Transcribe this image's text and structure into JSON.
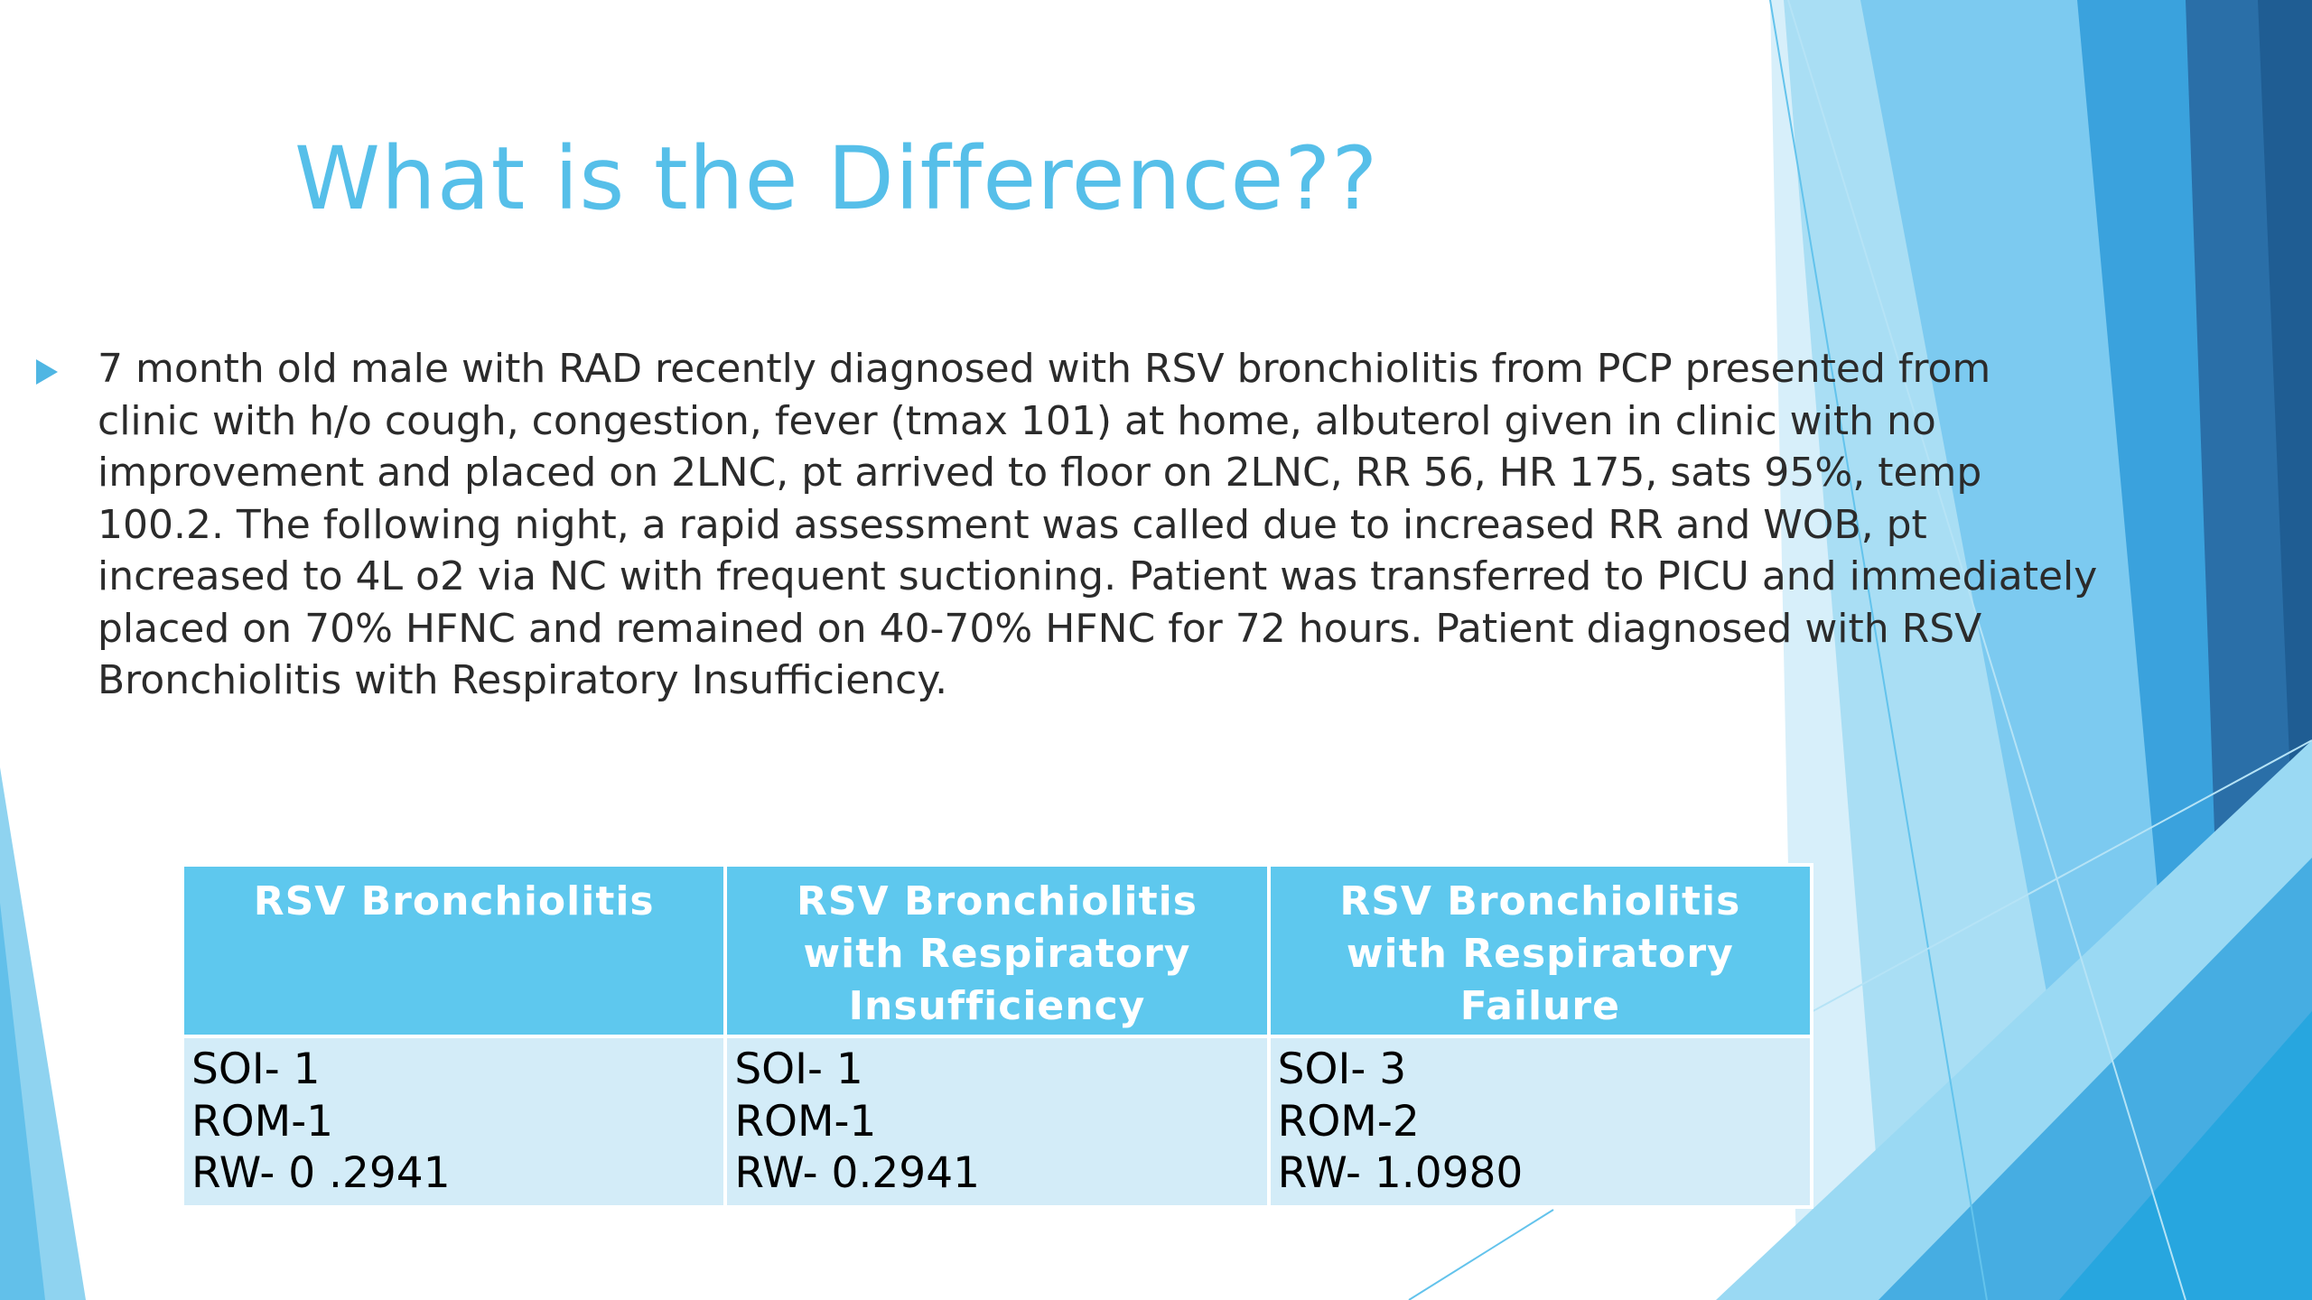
{
  "title": "What is the Difference??",
  "bullet_text": "7 month old male with RAD recently diagnosed with RSV bronchiolitis from PCP presented from clinic with h/o cough, congestion, fever (tmax 101) at home, albuterol given in clinic with no improvement and placed on 2LNC, pt arrived to floor on 2LNC, RR 56, HR 175, sats 95%, temp 100.2. The following night, a rapid assessment was called due to increased RR and WOB, pt increased to 4L o2 via NC with frequent suctioning. Patient was transferred to PICU and immediately placed on 70% HFNC and remained on 40-70% HFNC for 72 hours. Patient diagnosed with RSV Bronchiolitis with Respiratory Insufficiency.",
  "table": {
    "headers": [
      "RSV Bronchiolitis",
      "RSV Bronchiolitis with Respiratory Insufficiency",
      "RSV Bronchiolitis with Respiratory Failure"
    ],
    "rows": [
      [
        {
          "soi": "SOI- 1",
          "rom": "ROM-1",
          "rw": "RW- 0 .2941"
        },
        {
          "soi": "SOI- 1",
          "rom": "ROM-1",
          "rw": "RW- 0.2941"
        },
        {
          "soi": "SOI- 3",
          "rom": "ROM-2",
          "rw": "RW- 1.0980"
        }
      ]
    ]
  },
  "colors": {
    "title": "#56bfe9",
    "header_bg": "#5ec8ee",
    "cell_bg": "#d3ecf8",
    "bullet": "#4fb6e3",
    "accent_dark": "#2a6fa8",
    "accent_light": "#8fd3f0"
  },
  "icons": {
    "bullet": "triangle-right-icon"
  }
}
